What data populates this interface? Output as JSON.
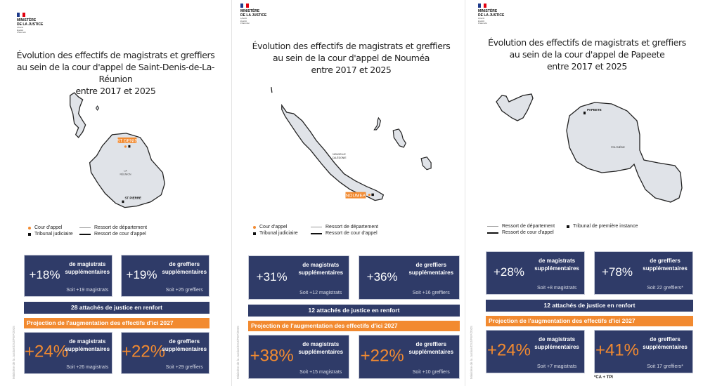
{
  "logo": {
    "line1": "MINISTÈRE",
    "line2": "DE LA JUSTICE",
    "motto": [
      "Liberté",
      "Égalité",
      "Fraternité"
    ]
  },
  "source_credit": "Ministère de la Justice/DSJ/PEP/2025",
  "colors": {
    "navy": "#2f3b68",
    "orange": "#f28a30",
    "land": "#e0e3e8"
  },
  "panels": [
    {
      "title": [
        "Évolution des effectifs de magistrats et greffiers",
        "au sein de la cour d'appel de Saint-Denis-de-La-Réunion",
        "entre 2017 et 2025"
      ],
      "map_labels": {
        "court": "ST DENIS",
        "region1": "LA",
        "region2": "RÉUNION",
        "tribunal": "ST PIERRE"
      },
      "legend": [
        "Cour d'appel",
        "Tribunal judiciaire",
        "Ressort de département",
        "Ressort de cour d'appel"
      ],
      "stats": [
        {
          "pct": "+18%",
          "l1": "de magistrats",
          "l2": "supplémentaires",
          "soit": "Soit +19 magistrats"
        },
        {
          "pct": "+19%",
          "l1": "de greffiers",
          "l2": "supplémentaires",
          "soit": "Soit +25 greffiers"
        }
      ],
      "attaches": "28 attachés de justice en renfort",
      "projection": "Projection de l'augmentation des effectifs d'ici 2027",
      "proj_stats": [
        {
          "pct": "+24%",
          "l1": "de magistrats",
          "l2": "supplémentaires",
          "soit": "Soit +26 magistrats"
        },
        {
          "pct": "+22%",
          "l1": "de greffiers",
          "l2": "supplémentaires",
          "soit": "Soit +29 greffiers"
        }
      ]
    },
    {
      "title": [
        "Évolution des effectifs de magistrats et greffiers",
        "au sein de la cour d'appel de Nouméa",
        "entre 2017 et 2025"
      ],
      "map_labels": {
        "court": "NOUMEA",
        "region1": "NOUVELLE",
        "region2": "CALÉDONIE"
      },
      "legend": [
        "Cour d'appel",
        "Tribunal judiciaire",
        "Ressort de département",
        "Ressort de cour d'appel"
      ],
      "stats": [
        {
          "pct": "+31%",
          "l1": "de magistrats",
          "l2": "supplémentaires",
          "soit": "Soit +12 magistrats"
        },
        {
          "pct": "+36%",
          "l1": "de greffiers",
          "l2": "supplémentaires",
          "soit": "Soit +16 greffiers"
        }
      ],
      "attaches": "12 attachés de justice en renfort",
      "projection": "Projection de l'augmentation des effectifs d'ici 2027",
      "proj_stats": [
        {
          "pct": "+38%",
          "l1": "de magistrats",
          "l2": "supplémentaires",
          "soit": "Soit +15 magistrats"
        },
        {
          "pct": "+22%",
          "l1": "de greffiers",
          "l2": "supplémentaires",
          "soit": "Soit +10 greffiers"
        }
      ]
    },
    {
      "title": [
        "Évolution des effectifs de magistrats et greffiers",
        "au sein de la cour d'appel de Papeete",
        "entre 2017 et 2025"
      ],
      "map_labels": {
        "court": "PAPEETE",
        "region1": "POLYNÉSIE"
      },
      "legend": [
        "Ressort de département",
        "Ressort de cour d'appel",
        "Tribunal de première instance"
      ],
      "stats": [
        {
          "pct": "+28%",
          "l1": "de magistrats",
          "l2": "supplémentaires",
          "soit": "Soit +8 magistrats"
        },
        {
          "pct": "+78%",
          "l1": "de greffiers",
          "l2": "supplémentaires",
          "soit": "Soit 22 greffiers*"
        }
      ],
      "attaches": "12 attachés de justice en renfort",
      "projection": "Projection de l'augmentation des effectifs d'ici 2027",
      "proj_stats": [
        {
          "pct": "+24%",
          "l1": "de magistrats",
          "l2": "supplémentaires",
          "soit": "Soit +7 magistrats"
        },
        {
          "pct": "+41%",
          "l1": "de greffiers",
          "l2": "supplémentaires",
          "soit": "Soit 17 greffiers*"
        }
      ],
      "footnote": "*CA + TPI"
    }
  ]
}
